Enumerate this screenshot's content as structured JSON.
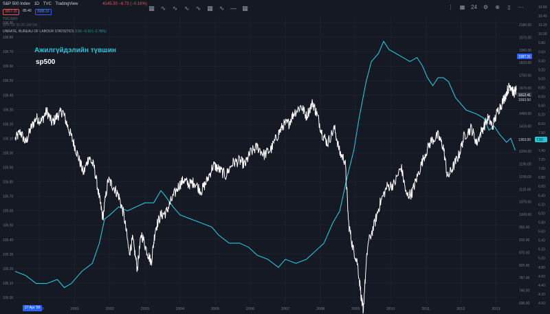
{
  "header": {
    "symbol": "S&P 500 Index",
    "interval": "1D",
    "source": "TVC",
    "platform": "TradingView",
    "ohlc": "4145.30 −6.73 (−0.16%)",
    "sell": "3857.26",
    "spread": "85.40",
    "buy": "3988.16",
    "sub_line_1": "TVC:DXY",
    "sub_line_2": "SPX·1D  30  2D  3W  5W",
    "sub_line_3_main": "UNRATE, BUREAU OF LABOUR STATISTICS",
    "sub_line_3_val": "3.50 −0.10 (−2.78%)"
  },
  "toolbar": {
    "icons": [
      "grid-icon",
      "wave-icon",
      "wave-icon",
      "wave-icon",
      "wave-icon",
      "grid-icon",
      "wave-icon",
      "minus-icon",
      "grid-icon"
    ],
    "right_icons": [
      "menu-icon",
      "grid-icon",
      "text-icon",
      "gear-icon",
      "lock-icon",
      "trash-icon",
      "more-icon"
    ],
    "right_text": "24"
  },
  "annotations": {
    "mongolian": "Ажилгүйдэлийн түвшин",
    "sp500": "sp500"
  },
  "date_badge": "27 Apr '99",
  "colors": {
    "background": "#151924",
    "sp500_line": "#ffffff",
    "unrate_line": "#26c6da",
    "grid": "#222634",
    "axis_text": "#787b86",
    "badge_blue": "#2962ff",
    "badge_teal": "#26c6da"
  },
  "chart_data": {
    "type": "line",
    "x_ticks": [
      "2000",
      "2001",
      "2002",
      "2003",
      "2004",
      "2005",
      "2006",
      "2007",
      "2008",
      "2009",
      "2010",
      "2011",
      "2012",
      "2013"
    ],
    "left_axis_ticks": [
      "106.90",
      "106.80",
      "106.70",
      "106.60",
      "106.50",
      "106.40",
      "106.30",
      "106.20",
      "106.10",
      "106.00",
      "105.90",
      "105.80",
      "105.70",
      "105.60",
      "105.50",
      "105.40",
      "105.30",
      "105.20",
      "105.10",
      "105.00"
    ],
    "right_price_ticks": [
      "2180.00",
      "2070.00",
      "1960.00",
      "1810.00",
      "1750.00",
      "1670.00",
      "1575.00",
      "1480.00",
      "1415.00",
      "1360.00",
      "1290.00",
      "1195.00",
      "1155.00",
      "1115.00",
      "1075.00",
      "1020.00",
      "955.00",
      "910.00",
      "870.00",
      "825.00",
      "787.00",
      "740.00",
      "696.00"
    ],
    "right_rate_ticks": [
      "10.60",
      "10.40",
      "10.20",
      "10.00",
      "9.80",
      "9.60",
      "9.40",
      "9.20",
      "9.00",
      "8.80",
      "8.60",
      "8.40",
      "8.20",
      "8.00",
      "7.80",
      "7.60",
      "7.40",
      "7.20",
      "7.00",
      "6.80",
      "6.60",
      "6.40",
      "6.20",
      "6.00",
      "5.80",
      "5.60",
      "5.40",
      "5.20",
      "5.00",
      "4.80",
      "4.60",
      "4.40",
      "4.20",
      "4.00"
    ],
    "price_badge": "1587.31",
    "last_price_badge": "1612.41",
    "last_price_badge_2": "1593.50",
    "rate_badge": "7.50",
    "rate_badge_left": "1363.00",
    "series": [
      {
        "name": "sp500",
        "values": [
          [
            1999.3,
            1340
          ],
          [
            1999.45,
            1380
          ],
          [
            1999.6,
            1320
          ],
          [
            1999.75,
            1400
          ],
          [
            1999.9,
            1460
          ],
          [
            2000.05,
            1440
          ],
          [
            2000.2,
            1500
          ],
          [
            2000.35,
            1430
          ],
          [
            2000.5,
            1470
          ],
          [
            2000.65,
            1500
          ],
          [
            2000.8,
            1410
          ],
          [
            2000.95,
            1330
          ],
          [
            2001.1,
            1250
          ],
          [
            2001.25,
            1170
          ],
          [
            2001.4,
            1250
          ],
          [
            2001.55,
            1200
          ],
          [
            2001.7,
            1060
          ],
          [
            2001.8,
            980
          ],
          [
            2001.95,
            1140
          ],
          [
            2002.1,
            1110
          ],
          [
            2002.25,
            1070
          ],
          [
            2002.4,
            990
          ],
          [
            2002.55,
            850
          ],
          [
            2002.65,
            900
          ],
          [
            2002.78,
            800
          ],
          [
            2002.9,
            920
          ],
          [
            2003.05,
            860
          ],
          [
            2003.18,
            820
          ],
          [
            2003.3,
            940
          ],
          [
            2003.45,
            990
          ],
          [
            2003.6,
            1000
          ],
          [
            2003.75,
            1050
          ],
          [
            2003.95,
            1110
          ],
          [
            2004.1,
            1140
          ],
          [
            2004.25,
            1120
          ],
          [
            2004.4,
            1130
          ],
          [
            2004.6,
            1090
          ],
          [
            2004.75,
            1130
          ],
          [
            2004.95,
            1210
          ],
          [
            2005.1,
            1190
          ],
          [
            2005.3,
            1160
          ],
          [
            2005.5,
            1220
          ],
          [
            2005.7,
            1230
          ],
          [
            2005.85,
            1210
          ],
          [
            2006.0,
            1270
          ],
          [
            2006.2,
            1300
          ],
          [
            2006.4,
            1260
          ],
          [
            2006.6,
            1290
          ],
          [
            2006.8,
            1370
          ],
          [
            2006.95,
            1420
          ],
          [
            2007.1,
            1430
          ],
          [
            2007.25,
            1490
          ],
          [
            2007.45,
            1530
          ],
          [
            2007.6,
            1470
          ],
          [
            2007.78,
            1550
          ],
          [
            2007.9,
            1480
          ],
          [
            2008.05,
            1370
          ],
          [
            2008.2,
            1320
          ],
          [
            2008.4,
            1400
          ],
          [
            2008.55,
            1270
          ],
          [
            2008.7,
            1230
          ],
          [
            2008.8,
            960
          ],
          [
            2008.92,
            870
          ],
          [
            2009.05,
            820
          ],
          [
            2009.18,
            700
          ],
          [
            2009.22,
            680
          ],
          [
            2009.35,
            880
          ],
          [
            2009.55,
            960
          ],
          [
            2009.7,
            1040
          ],
          [
            2009.9,
            1110
          ],
          [
            2010.1,
            1120
          ],
          [
            2010.3,
            1200
          ],
          [
            2010.45,
            1070
          ],
          [
            2010.6,
            1080
          ],
          [
            2010.75,
            1150
          ],
          [
            2010.95,
            1250
          ],
          [
            2011.15,
            1330
          ],
          [
            2011.35,
            1360
          ],
          [
            2011.5,
            1300
          ],
          [
            2011.62,
            1150
          ],
          [
            2011.78,
            1200
          ],
          [
            2011.95,
            1260
          ],
          [
            2012.1,
            1360
          ],
          [
            2012.3,
            1400
          ],
          [
            2012.45,
            1320
          ],
          [
            2012.6,
            1390
          ],
          [
            2012.78,
            1460
          ],
          [
            2012.9,
            1410
          ],
          [
            2013.05,
            1500
          ],
          [
            2013.2,
            1560
          ],
          [
            2013.35,
            1640
          ],
          [
            2013.42,
            1665
          ],
          [
            2013.5,
            1610
          ],
          [
            2013.58,
            1630
          ]
        ]
      },
      {
        "name": "unrate",
        "values": [
          [
            1999.3,
            4.3
          ],
          [
            1999.6,
            4.2
          ],
          [
            1999.9,
            4.0
          ],
          [
            2000.2,
            4.0
          ],
          [
            2000.5,
            4.1
          ],
          [
            2000.7,
            3.9
          ],
          [
            2000.9,
            4.0
          ],
          [
            2001.2,
            4.3
          ],
          [
            2001.5,
            4.5
          ],
          [
            2001.7,
            5.0
          ],
          [
            2001.85,
            5.6
          ],
          [
            2002.0,
            5.7
          ],
          [
            2002.25,
            5.9
          ],
          [
            2002.5,
            5.8
          ],
          [
            2002.75,
            5.9
          ],
          [
            2003.0,
            6.0
          ],
          [
            2003.25,
            6.0
          ],
          [
            2003.45,
            6.3
          ],
          [
            2003.55,
            6.2
          ],
          [
            2003.8,
            5.9
          ],
          [
            2004.0,
            5.7
          ],
          [
            2004.3,
            5.6
          ],
          [
            2004.6,
            5.5
          ],
          [
            2004.9,
            5.4
          ],
          [
            2005.1,
            5.2
          ],
          [
            2005.4,
            5.0
          ],
          [
            2005.7,
            5.0
          ],
          [
            2005.95,
            4.9
          ],
          [
            2006.2,
            4.7
          ],
          [
            2006.5,
            4.6
          ],
          [
            2006.8,
            4.4
          ],
          [
            2007.0,
            4.6
          ],
          [
            2007.3,
            4.5
          ],
          [
            2007.6,
            4.6
          ],
          [
            2007.85,
            4.8
          ],
          [
            2008.1,
            5.0
          ],
          [
            2008.35,
            5.5
          ],
          [
            2008.55,
            5.8
          ],
          [
            2008.75,
            6.6
          ],
          [
            2008.95,
            7.3
          ],
          [
            2009.1,
            8.1
          ],
          [
            2009.3,
            9.0
          ],
          [
            2009.45,
            9.5
          ],
          [
            2009.65,
            9.7
          ],
          [
            2009.8,
            10.0
          ],
          [
            2009.95,
            9.8
          ],
          [
            2010.15,
            9.7
          ],
          [
            2010.35,
            9.6
          ],
          [
            2010.55,
            9.5
          ],
          [
            2010.75,
            9.6
          ],
          [
            2010.9,
            9.4
          ],
          [
            2011.05,
            9.1
          ],
          [
            2011.2,
            8.9
          ],
          [
            2011.35,
            9.1
          ],
          [
            2011.5,
            9.1
          ],
          [
            2011.65,
            9.0
          ],
          [
            2011.85,
            8.6
          ],
          [
            2011.95,
            8.5
          ],
          [
            2012.15,
            8.3
          ],
          [
            2012.45,
            8.2
          ],
          [
            2012.65,
            8.1
          ],
          [
            2012.8,
            7.8
          ],
          [
            2012.95,
            7.9
          ],
          [
            2013.1,
            7.7
          ],
          [
            2013.3,
            7.5
          ],
          [
            2013.42,
            7.6
          ],
          [
            2013.55,
            7.3
          ]
        ]
      }
    ]
  }
}
